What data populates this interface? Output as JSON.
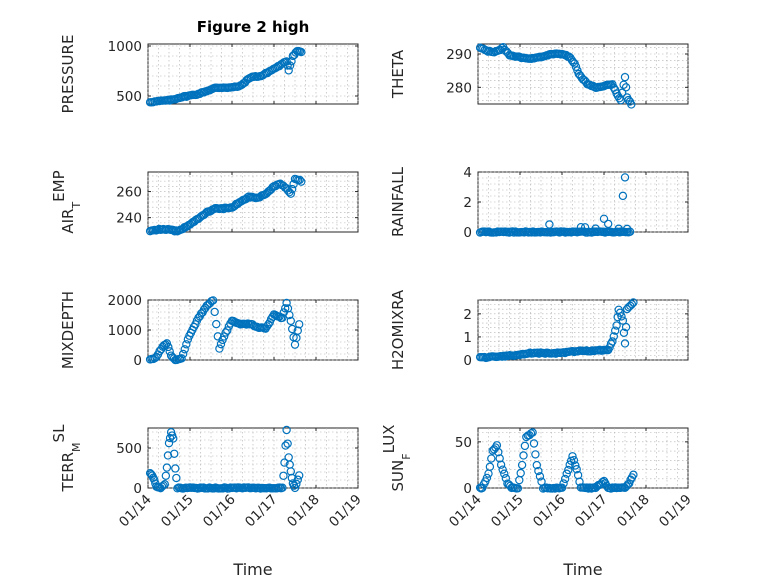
{
  "chart_data": [
    {
      "type": "scatter",
      "title": "Figure 2 high",
      "ylabel": "PRESSURE",
      "xlabel": "",
      "xlim": [
        0,
        5
      ],
      "ylim": [
        420,
        1020
      ],
      "yticks": [
        500,
        1000
      ],
      "ytick_labels": [
        "500",
        "1000"
      ],
      "grid": true,
      "marker": "o",
      "color": "#0072bd",
      "series": [
        {
          "keypoints": [
            [
              0.05,
              440
            ],
            [
              0.2,
              445
            ],
            [
              0.35,
              452
            ],
            [
              0.45,
              455
            ],
            [
              0.55,
              460
            ],
            [
              0.65,
              470
            ],
            [
              0.75,
              485
            ],
            [
              0.95,
              500
            ],
            [
              1.2,
              520
            ],
            [
              1.4,
              550
            ],
            [
              1.6,
              580
            ],
            [
              1.8,
              585
            ],
            [
              2.0,
              585
            ],
            [
              2.2,
              600
            ],
            [
              2.45,
              690
            ],
            [
              2.7,
              700
            ],
            [
              2.95,
              760
            ],
            [
              3.2,
              820
            ],
            [
              3.3,
              850
            ],
            [
              3.35,
              760
            ],
            [
              3.45,
              900
            ],
            [
              3.55,
              950
            ],
            [
              3.65,
              940
            ]
          ]
        }
      ]
    },
    {
      "type": "scatter",
      "title": "",
      "ylabel": "THETA",
      "xlabel": "",
      "xlim": [
        0,
        5
      ],
      "ylim": [
        275,
        293
      ],
      "yticks": [
        280,
        290
      ],
      "ytick_labels": [
        "280",
        "290"
      ],
      "grid": true,
      "marker": "o",
      "color": "#0072bd",
      "series": [
        {
          "keypoints": [
            [
              0.05,
              292
            ],
            [
              0.2,
              291
            ],
            [
              0.35,
              290.5
            ],
            [
              0.5,
              291
            ],
            [
              0.6,
              292
            ],
            [
              0.75,
              289.5
            ],
            [
              1.0,
              289
            ],
            [
              1.2,
              288.5
            ],
            [
              1.4,
              288.8
            ],
            [
              1.6,
              289.5
            ],
            [
              1.8,
              290
            ],
            [
              2.0,
              290
            ],
            [
              2.2,
              289
            ],
            [
              2.3,
              287
            ],
            [
              2.4,
              284
            ],
            [
              2.6,
              281
            ],
            [
              2.8,
              280
            ],
            [
              3.0,
              280.5
            ],
            [
              3.2,
              281
            ],
            [
              3.3,
              278
            ],
            [
              3.4,
              276
            ],
            [
              3.5,
              283
            ],
            [
              3.55,
              277
            ],
            [
              3.65,
              275
            ]
          ]
        }
      ]
    },
    {
      "type": "scatter",
      "title": "",
      "ylabel": "AIR_TEMP",
      "xlabel": "",
      "xlim": [
        0,
        5
      ],
      "ylim": [
        229,
        275
      ],
      "yticks": [
        240,
        260
      ],
      "ytick_labels": [
        "240",
        "260"
      ],
      "grid": true,
      "marker": "o",
      "color": "#0072bd",
      "series": [
        {
          "keypoints": [
            [
              0.05,
              230
            ],
            [
              0.3,
              231
            ],
            [
              0.5,
              231
            ],
            [
              0.7,
              229.5
            ],
            [
              0.9,
              233
            ],
            [
              1.1,
              237
            ],
            [
              1.4,
              244
            ],
            [
              1.6,
              247
            ],
            [
              1.8,
              247
            ],
            [
              2.0,
              248
            ],
            [
              2.2,
              252
            ],
            [
              2.4,
              256
            ],
            [
              2.6,
              255
            ],
            [
              2.8,
              258
            ],
            [
              3.0,
              264
            ],
            [
              3.15,
              266
            ],
            [
              3.3,
              262
            ],
            [
              3.4,
              258
            ],
            [
              3.5,
              270
            ],
            [
              3.65,
              268
            ]
          ]
        }
      ]
    },
    {
      "type": "scatter",
      "title": "",
      "ylabel": "RAINFALL",
      "xlabel": "",
      "xlim": [
        0,
        5
      ],
      "ylim": [
        0,
        4
      ],
      "yticks": [
        0,
        2,
        4
      ],
      "ytick_labels": [
        "0",
        "2",
        "4"
      ],
      "grid": true,
      "marker": "o",
      "color": "#0072bd",
      "series": [
        {
          "x_range": [
            0.05,
            3.65
          ],
          "baseline": 0,
          "spikes": [
            [
              1.7,
              0.5
            ],
            [
              2.45,
              0.3
            ],
            [
              2.55,
              0.3
            ],
            [
              2.8,
              0.2
            ],
            [
              3.0,
              0.9
            ],
            [
              3.1,
              0.5
            ],
            [
              3.35,
              0.2
            ],
            [
              3.45,
              2.4
            ],
            [
              3.5,
              3.6
            ],
            [
              3.55,
              0.2
            ]
          ]
        }
      ]
    },
    {
      "type": "scatter",
      "title": "",
      "ylabel": "MIXDEPTH",
      "xlabel": "",
      "xlim": [
        0,
        5
      ],
      "ylim": [
        0,
        2000
      ],
      "yticks": [
        0,
        1000,
        2000
      ],
      "ytick_labels": [
        "0",
        "1000",
        "2000"
      ],
      "grid": true,
      "marker": "o",
      "color": "#0072bd",
      "series": [
        {
          "keypoints": [
            [
              0.05,
              0
            ],
            [
              0.2,
              100
            ],
            [
              0.35,
              450
            ],
            [
              0.45,
              550
            ],
            [
              0.55,
              150
            ],
            [
              0.65,
              0
            ],
            [
              0.8,
              50
            ],
            [
              0.95,
              700
            ],
            [
              1.2,
              1400
            ],
            [
              1.4,
              1800
            ],
            [
              1.55,
              2000
            ],
            [
              1.7,
              400
            ],
            [
              1.85,
              900
            ],
            [
              2.0,
              1300
            ],
            [
              2.2,
              1200
            ],
            [
              2.45,
              1200
            ],
            [
              2.6,
              1100
            ],
            [
              2.8,
              1050
            ],
            [
              3.0,
              1500
            ],
            [
              3.2,
              1400
            ],
            [
              3.3,
              1900
            ],
            [
              3.4,
              1300
            ],
            [
              3.5,
              500
            ],
            [
              3.6,
              1200
            ]
          ]
        }
      ]
    },
    {
      "type": "scatter",
      "title": "",
      "ylabel": "H2OMIXRA",
      "xlabel": "",
      "xlim": [
        0,
        5
      ],
      "ylim": [
        0,
        2.6
      ],
      "yticks": [
        0,
        1,
        2
      ],
      "ytick_labels": [
        "0",
        "1",
        "2"
      ],
      "grid": true,
      "marker": "o",
      "color": "#0072bd",
      "series": [
        {
          "keypoints": [
            [
              0.05,
              0.1
            ],
            [
              0.5,
              0.15
            ],
            [
              0.9,
              0.2
            ],
            [
              1.2,
              0.3
            ],
            [
              1.6,
              0.3
            ],
            [
              2.0,
              0.3
            ],
            [
              2.4,
              0.4
            ],
            [
              2.8,
              0.4
            ],
            [
              3.1,
              0.45
            ],
            [
              3.2,
              0.8
            ],
            [
              3.3,
              1.5
            ],
            [
              3.35,
              2.2
            ],
            [
              3.45,
              1.7
            ],
            [
              3.5,
              0.7
            ],
            [
              3.55,
              2.2
            ],
            [
              3.7,
              2.5
            ]
          ]
        }
      ]
    },
    {
      "type": "scatter",
      "title": "",
      "ylabel": "TERR_MSL",
      "xlabel": "Time",
      "xlim": [
        0,
        5
      ],
      "ylim": [
        0,
        750
      ],
      "yticks": [
        0,
        500
      ],
      "ytick_labels": [
        "0",
        "500"
      ],
      "grid": true,
      "marker": "o",
      "color": "#0072bd",
      "x_tick_labels": [
        "01/14",
        "01/15",
        "01/16",
        "01/17",
        "01/18",
        "01/19"
      ],
      "series": [
        {
          "keypoints": [
            [
              0.05,
              180
            ],
            [
              0.1,
              150
            ],
            [
              0.15,
              100
            ],
            [
              0.2,
              20
            ],
            [
              0.3,
              0
            ],
            [
              0.4,
              50
            ],
            [
              0.45,
              250
            ],
            [
              0.5,
              560
            ],
            [
              0.55,
              690
            ],
            [
              0.6,
              620
            ],
            [
              0.65,
              250
            ],
            [
              0.7,
              0
            ],
            [
              1.0,
              0
            ],
            [
              1.5,
              0
            ],
            [
              2.0,
              0
            ],
            [
              2.5,
              0
            ],
            [
              3.0,
              0
            ],
            [
              3.2,
              0
            ],
            [
              3.25,
              320
            ],
            [
              3.3,
              730
            ],
            [
              3.35,
              380
            ],
            [
              3.4,
              200
            ],
            [
              3.45,
              50
            ],
            [
              3.5,
              0
            ],
            [
              3.6,
              150
            ]
          ]
        }
      ]
    },
    {
      "type": "scatter",
      "title": "",
      "ylabel": "SUN_FLUX",
      "xlabel": "Time",
      "xlim": [
        0,
        5
      ],
      "ylim": [
        0,
        65
      ],
      "yticks": [
        0,
        50
      ],
      "ytick_labels": [
        "0",
        "50"
      ],
      "grid": true,
      "marker": "o",
      "color": "#0072bd",
      "x_tick_labels": [
        "01/14",
        "01/15",
        "01/16",
        "01/17",
        "01/18",
        "01/19"
      ],
      "series": [
        {
          "keypoints": [
            [
              0.05,
              0
            ],
            [
              0.1,
              0
            ],
            [
              0.25,
              15
            ],
            [
              0.35,
              40
            ],
            [
              0.45,
              46
            ],
            [
              0.55,
              25
            ],
            [
              0.7,
              5
            ],
            [
              0.8,
              0
            ],
            [
              0.95,
              0
            ],
            [
              1.05,
              25
            ],
            [
              1.15,
              55
            ],
            [
              1.3,
              60
            ],
            [
              1.4,
              25
            ],
            [
              1.55,
              0
            ],
            [
              1.8,
              0
            ],
            [
              2.0,
              0
            ],
            [
              2.15,
              20
            ],
            [
              2.25,
              35
            ],
            [
              2.35,
              20
            ],
            [
              2.45,
              0
            ],
            [
              2.7,
              0
            ],
            [
              2.8,
              0
            ],
            [
              3.0,
              8
            ],
            [
              3.1,
              0
            ],
            [
              3.4,
              0
            ],
            [
              3.5,
              0
            ],
            [
              3.6,
              5
            ],
            [
              3.7,
              15
            ]
          ]
        }
      ]
    }
  ]
}
